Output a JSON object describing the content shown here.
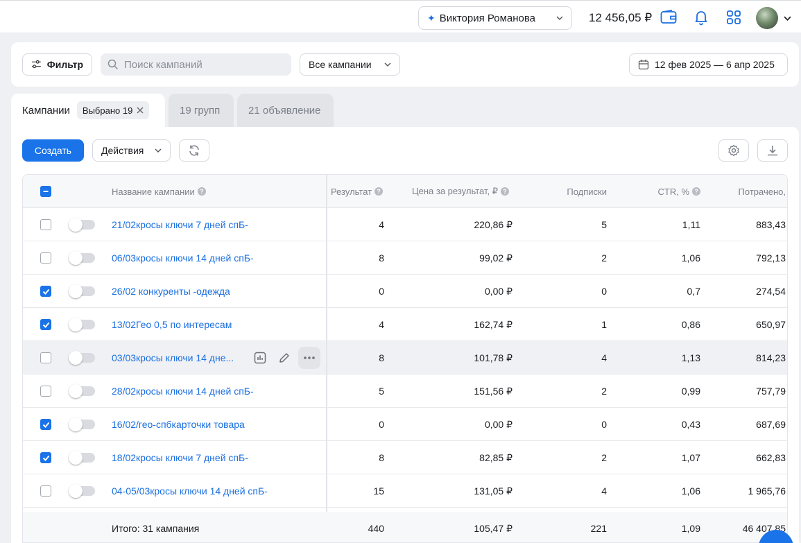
{
  "topbar": {
    "account_name": "Виктория Романова",
    "balance": "12 456,05 ₽"
  },
  "filters": {
    "filter_label": "Фильтр",
    "search_placeholder": "Поиск кампаний",
    "campaigns_select": "Все кампании",
    "date_range": "12 фев 2025 — 6 апр 2025"
  },
  "tabs": [
    {
      "label": "Кампании",
      "chip": "Выбрано 19"
    },
    {
      "label": "19 групп"
    },
    {
      "label": "21 объявление"
    }
  ],
  "toolbar": {
    "create_label": "Создать",
    "actions_label": "Действия"
  },
  "table": {
    "columns": {
      "name": "Название кампании",
      "result": "Результат",
      "price": "Цена за результат, ₽",
      "subs": "Подписки",
      "ctr": "CTR, %",
      "spent": "Потрачено,"
    },
    "rows": [
      {
        "name": "21/02кросы ключи 7 дней спБ-",
        "result": "4",
        "price": "220,86 ₽",
        "subs": "5",
        "ctr": "1,11",
        "spent": "883,43",
        "checked": false
      },
      {
        "name": "06/03кросы ключи 14 дней спБ-",
        "result": "8",
        "price": "99,02 ₽",
        "subs": "2",
        "ctr": "1,06",
        "spent": "792,13",
        "checked": false
      },
      {
        "name": "26/02 конкуренты -одежда",
        "result": "0",
        "price": "0,00 ₽",
        "subs": "0",
        "ctr": "0,7",
        "spent": "274,54",
        "checked": true
      },
      {
        "name": "13/02Гео 0,5 по интересам",
        "result": "4",
        "price": "162,74 ₽",
        "subs": "1",
        "ctr": "0,86",
        "spent": "650,97",
        "checked": true
      },
      {
        "name": "03/03кросы ключи 14 дне...",
        "result": "8",
        "price": "101,78 ₽",
        "subs": "4",
        "ctr": "1,13",
        "spent": "814,23",
        "checked": false
      },
      {
        "name": "28/02кросы ключи 14 дней спБ-",
        "result": "5",
        "price": "151,56 ₽",
        "subs": "2",
        "ctr": "0,99",
        "spent": "757,79",
        "checked": false
      },
      {
        "name": "16/02/гео-спбкарточки товара",
        "result": "0",
        "price": "0,00 ₽",
        "subs": "0",
        "ctr": "0,43",
        "spent": "687,69",
        "checked": true
      },
      {
        "name": "18/02кросы ключи 7 дней спБ-",
        "result": "8",
        "price": "82,85 ₽",
        "subs": "2",
        "ctr": "1,07",
        "spent": "662,83",
        "checked": true
      },
      {
        "name": "04-05/03кросы ключи 14 дней спБ-",
        "result": "15",
        "price": "131,05 ₽",
        "subs": "4",
        "ctr": "1,06",
        "spent": "1 965,76",
        "checked": false
      }
    ],
    "total": {
      "label": "Итого: 31 кампания",
      "result": "440",
      "price": "105,47 ₽",
      "subs": "221",
      "ctr": "1,09",
      "spent": "46 407,85"
    }
  }
}
